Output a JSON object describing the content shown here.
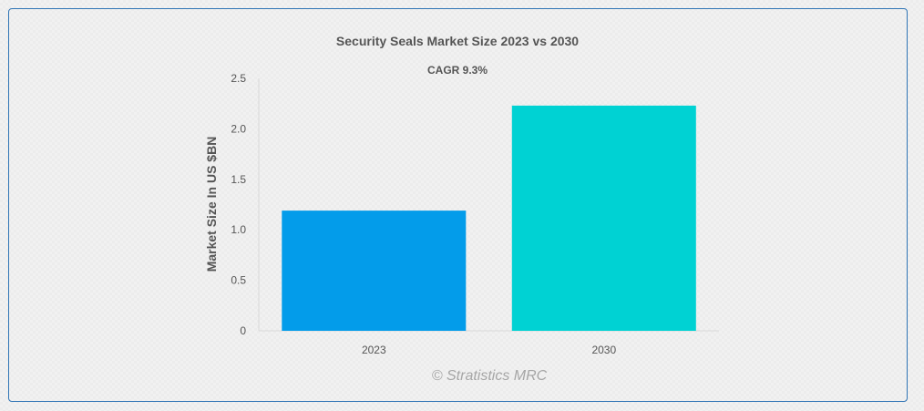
{
  "chart_data": {
    "type": "bar",
    "title": "Security Seals Market Size 2023 vs 2030",
    "subtitle": "CAGR 9.3%",
    "xlabel": "",
    "ylabel": "Market Size In US $BN",
    "categories": [
      "2023",
      "2030"
    ],
    "values": [
      1.19,
      2.23
    ],
    "colors": [
      "#039cea",
      "#00d2d3"
    ],
    "ylim": [
      0,
      2.5
    ],
    "yticks": [
      "0",
      "0.5",
      "1.0",
      "1.5",
      "2.0",
      "2.5"
    ],
    "grid": false,
    "legend": "none"
  },
  "watermark": "© Stratistics MRC",
  "colors": {
    "border": "#2f74b5",
    "text": "#555555",
    "axis": "#d9d9d9"
  }
}
